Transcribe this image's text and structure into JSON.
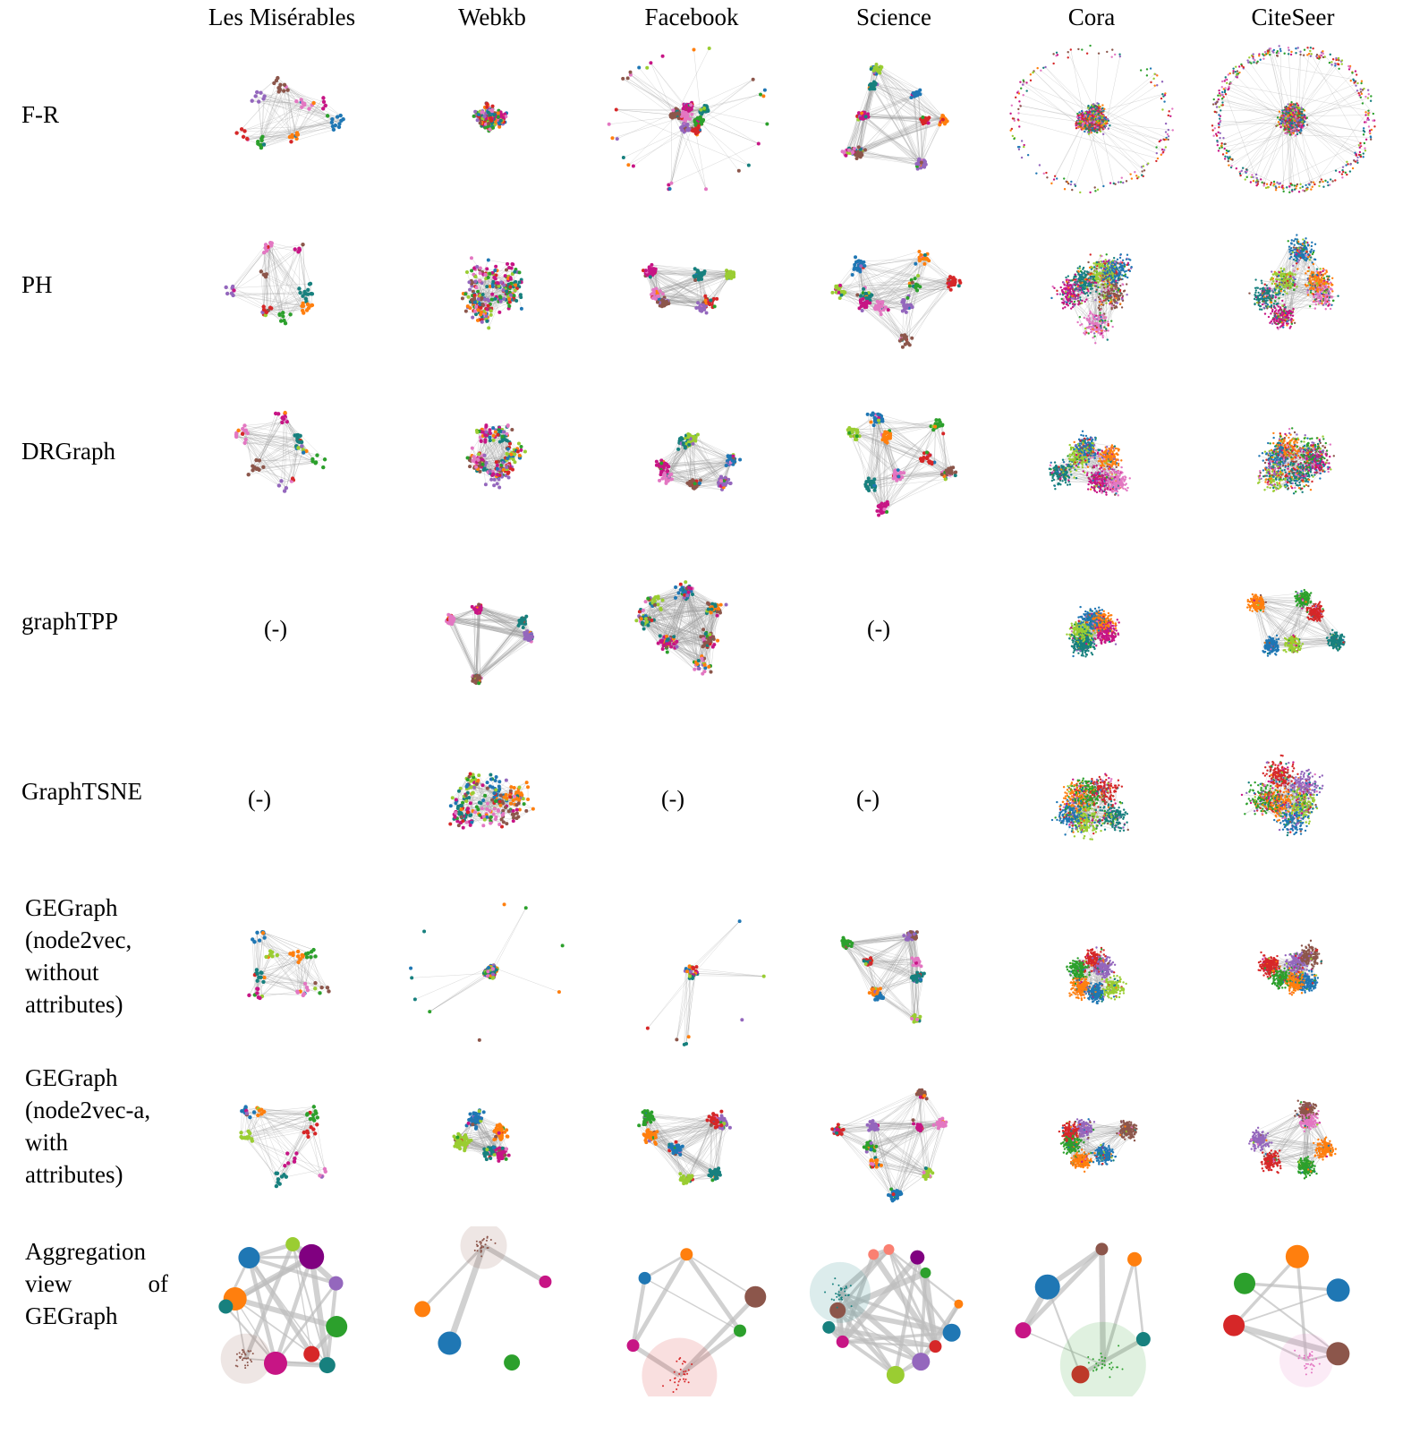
{
  "columns": [
    "Les Misérables",
    "Webkb",
    "Facebook",
    "Science",
    "Cora",
    "CiteSeer"
  ],
  "rows": {
    "fr": "F-R",
    "ph": "PH",
    "drgraph": "DRGraph",
    "graphtpp": "graphTPP",
    "graphtsne": "GraphTSNE",
    "gegraph_n2v_l1": "GEGraph",
    "gegraph_n2v_l2": "(node2vec,",
    "gegraph_n2v_l3": "without",
    "gegraph_n2v_l4": "attributes)",
    "gegraph_n2va_l1": "GEGraph",
    "gegraph_n2va_l2": "(node2vec-a,",
    "gegraph_n2va_l3": "with",
    "gegraph_n2va_l4": "attributes)",
    "agg_l1": "Aggregation",
    "agg_l2a": "view",
    "agg_l2b": "of",
    "agg_l3": "GEGraph"
  },
  "missing_marker": "(-)",
  "palette": {
    "blue": "#1f77b4",
    "orange": "#ff7f0e",
    "green": "#2ca02c",
    "red": "#d62728",
    "purple": "#9467bd",
    "brown": "#8c564b",
    "pink": "#e377c2",
    "magenta": "#c71585",
    "teal": "#17807e",
    "lime": "#9acd32",
    "salmon": "#fa8072",
    "darkpurple": "#800080",
    "edge": "#9a9a9a"
  }
}
